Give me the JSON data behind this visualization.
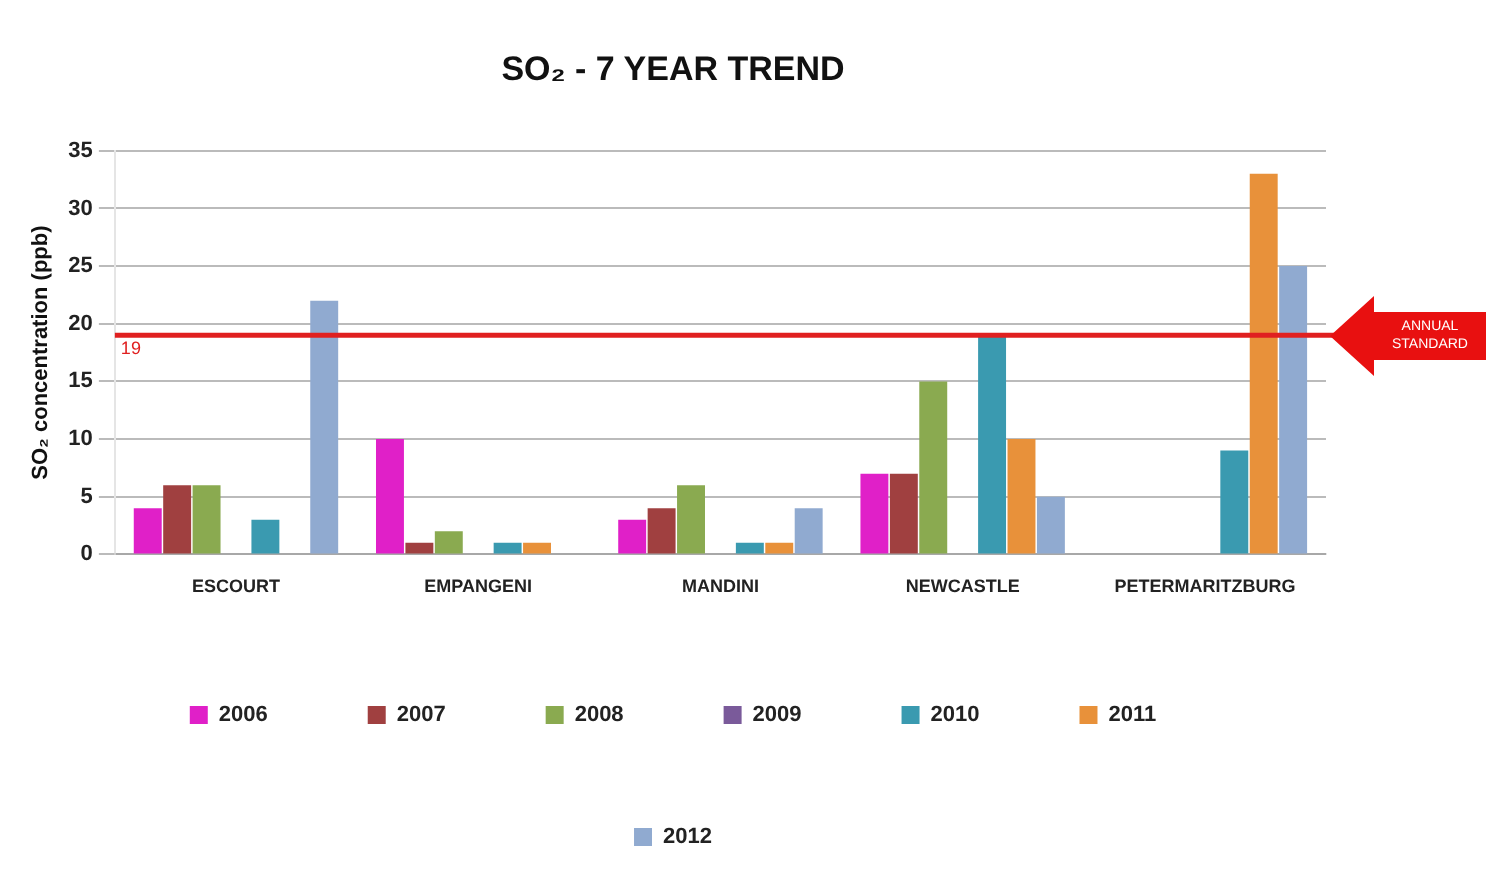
{
  "chart_data": {
    "type": "bar",
    "title": "SO₂ - 7 YEAR TREND",
    "ylabel": "SO₂ concentration (ppb)",
    "categories": [
      "ESCOURT",
      "EMPANGENI",
      "MANDINI",
      "NEWCASTLE",
      "PETERMARITZBURG"
    ],
    "series": [
      {
        "name": "2006",
        "color": "#e020c8",
        "values": [
          4,
          10,
          3,
          7,
          null
        ]
      },
      {
        "name": "2007",
        "color": "#a04040",
        "values": [
          6,
          1,
          4,
          7,
          null
        ]
      },
      {
        "name": "2008",
        "color": "#8aaa50",
        "values": [
          6,
          2,
          6,
          15,
          null
        ]
      },
      {
        "name": "2009",
        "color": "#7a5a9a",
        "values": [
          null,
          null,
          null,
          null,
          null
        ]
      },
      {
        "name": "2010",
        "color": "#3a9ab0",
        "values": [
          3,
          1,
          1,
          19,
          9
        ]
      },
      {
        "name": "2011",
        "color": "#e8913a",
        "values": [
          null,
          1,
          1,
          10,
          33
        ]
      },
      {
        "name": "2012",
        "color": "#90aad0",
        "values": [
          22,
          null,
          4,
          5,
          25
        ]
      }
    ],
    "ylim": [
      0,
      35
    ],
    "yticks": [
      0,
      5,
      10,
      15,
      20,
      25,
      30,
      35
    ],
    "grid": "y",
    "legend": "bottom",
    "ref_lines": [
      {
        "axis": "y",
        "value": 19,
        "label": "19",
        "color": "#e02020"
      }
    ],
    "annotations": [
      "ANNUAL STANDARD"
    ]
  }
}
